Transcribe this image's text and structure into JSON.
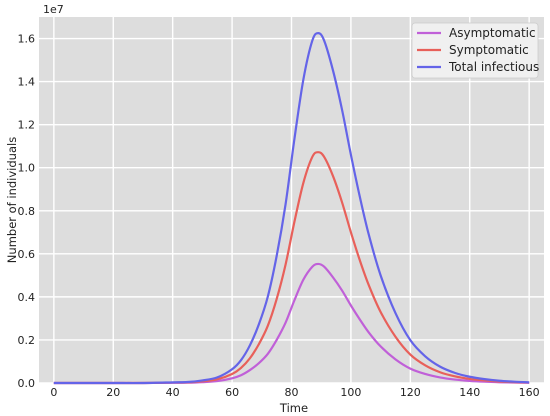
{
  "chart_data": {
    "type": "line",
    "title": "",
    "xlabel": "Time",
    "ylabel": "Number of individuals",
    "y_offset_label": "1e7",
    "xlim": [
      -5,
      165
    ],
    "ylim": [
      0,
      17000000
    ],
    "x_ticks": [
      0,
      20,
      40,
      60,
      80,
      100,
      120,
      140,
      160
    ],
    "x_tick_labels": [
      "0",
      "20",
      "40",
      "60",
      "80",
      "100",
      "120",
      "140",
      "160"
    ],
    "y_ticks": [
      0,
      2000000,
      4000000,
      6000000,
      8000000,
      10000000,
      12000000,
      14000000,
      16000000
    ],
    "y_tick_labels": [
      "0.0",
      "0.2",
      "0.4",
      "0.6",
      "0.8",
      "1.0",
      "1.2",
      "1.4",
      "1.6"
    ],
    "grid": true,
    "legend_position": "top-right",
    "x": [
      0,
      10,
      20,
      30,
      40,
      45,
      50,
      55,
      60,
      63,
      66,
      69,
      72,
      75,
      78,
      81,
      84,
      87,
      89,
      91,
      94,
      97,
      100,
      103,
      106,
      110,
      115,
      120,
      125,
      130,
      135,
      140,
      145,
      150,
      155,
      160
    ],
    "series": [
      {
        "name": "Asymptomatic",
        "color": "#c060d8",
        "values": [
          0,
          0,
          0,
          0,
          0.01,
          0.015,
          0.04,
          0.09,
          0.22,
          0.36,
          0.6,
          0.92,
          1.35,
          2.0,
          2.8,
          3.85,
          4.8,
          5.4,
          5.53,
          5.4,
          4.9,
          4.3,
          3.6,
          2.95,
          2.35,
          1.7,
          1.1,
          0.67,
          0.42,
          0.26,
          0.16,
          0.1,
          0.06,
          0.035,
          0.02,
          0.01
        ]
      },
      {
        "name": "Symptomatic",
        "color": "#e8605a",
        "values": [
          0,
          0,
          0,
          0,
          0.02,
          0.03,
          0.08,
          0.17,
          0.42,
          0.7,
          1.15,
          1.8,
          2.65,
          3.9,
          5.5,
          7.5,
          9.3,
          10.5,
          10.72,
          10.5,
          9.6,
          8.4,
          7.0,
          5.7,
          4.55,
          3.3,
          2.15,
          1.32,
          0.82,
          0.5,
          0.31,
          0.19,
          0.12,
          0.07,
          0.04,
          0.02
        ]
      },
      {
        "name": "Total infectious",
        "color": "#6464e8",
        "values": [
          0,
          0,
          0,
          0,
          0.03,
          0.045,
          0.12,
          0.26,
          0.64,
          1.06,
          1.75,
          2.72,
          4.0,
          5.9,
          8.3,
          11.35,
          14.1,
          15.9,
          16.25,
          15.9,
          14.5,
          12.7,
          10.6,
          8.65,
          6.9,
          5.0,
          3.25,
          1.99,
          1.24,
          0.76,
          0.47,
          0.29,
          0.18,
          0.105,
          0.06,
          0.03
        ]
      }
    ],
    "values_unit_note": "1e7"
  }
}
